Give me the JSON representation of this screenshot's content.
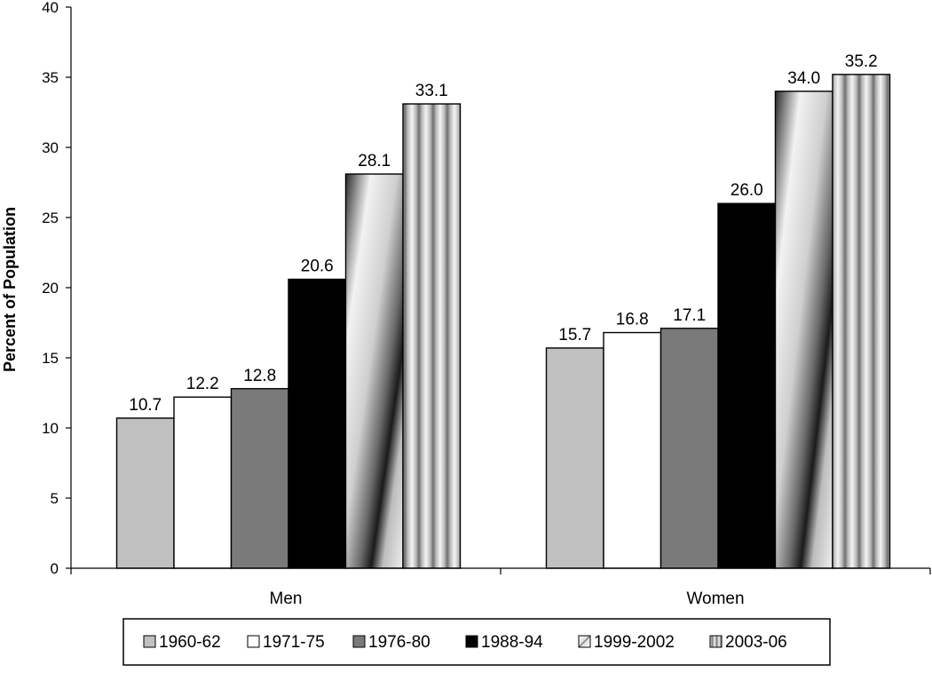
{
  "chart_data": {
    "type": "bar",
    "categories": [
      "Men",
      "Women"
    ],
    "series": [
      {
        "name": "1960-62",
        "values": [
          10.7,
          15.7
        ],
        "fill": "#c0c0c0",
        "pattern": "solid"
      },
      {
        "name": "1971-75",
        "values": [
          12.2,
          16.8
        ],
        "fill": "#ffffff",
        "pattern": "solid"
      },
      {
        "name": "1976-80",
        "values": [
          12.8,
          17.1
        ],
        "fill": "#7a7a7a",
        "pattern": "solid"
      },
      {
        "name": "1988-94",
        "values": [
          20.6,
          26.0
        ],
        "fill": "#000000",
        "pattern": "solid"
      },
      {
        "name": "1999-2002",
        "values": [
          28.1,
          34.0
        ],
        "fill": "#cfcfcf",
        "pattern": "diagonal-gradient"
      },
      {
        "name": "2003-06",
        "values": [
          33.1,
          35.2
        ],
        "fill": "#bdbdbd",
        "pattern": "vertical-stripes"
      }
    ],
    "data_labels": [
      [
        "10.7",
        "15.7"
      ],
      [
        "12.2",
        "16.8"
      ],
      [
        "12.8",
        "17.1"
      ],
      [
        "20.6",
        "26.0"
      ],
      [
        "28.1",
        "34.0"
      ],
      [
        "33.1",
        "35.2"
      ]
    ],
    "ylabel": "Percent of Population",
    "xlabel": "",
    "ylim": [
      0,
      40
    ],
    "yticks": [
      0,
      5,
      10,
      15,
      20,
      25,
      30,
      35,
      40
    ],
    "grid": false,
    "legend": "bottom"
  }
}
